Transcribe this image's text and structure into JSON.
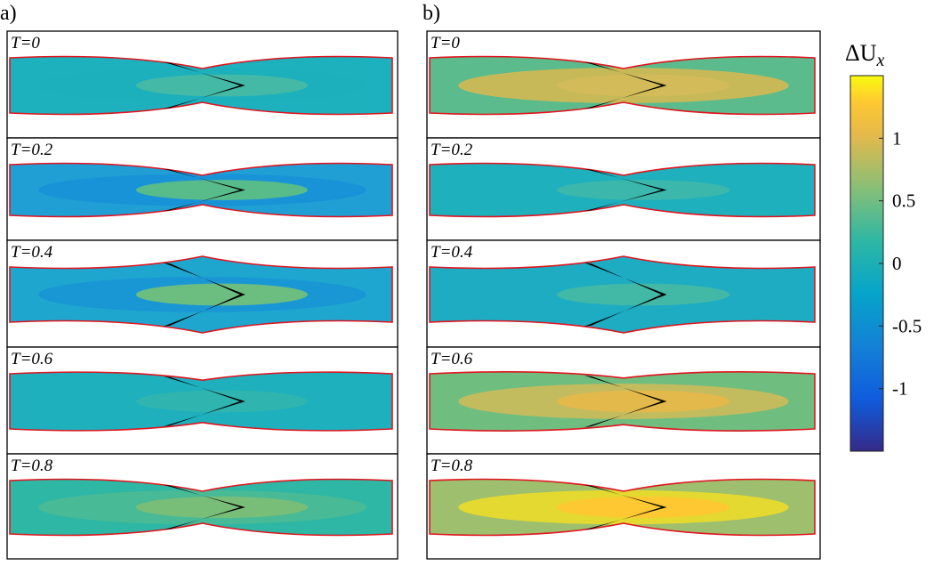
{
  "panels": [
    {
      "label": "a)",
      "frames": [
        "T=0",
        "T=0.2",
        "T=0.4",
        "T=0.6",
        "T=0.8"
      ]
    },
    {
      "label": "b)",
      "frames": [
        "T=0",
        "T=0.2",
        "T=0.4",
        "T=0.6",
        "T=0.8"
      ]
    }
  ],
  "colorbar": {
    "title": "ΔU",
    "title_sub": "x",
    "lim": [
      -1.5,
      1.5
    ],
    "ticks": [
      1,
      0.5,
      0,
      -0.5,
      -1
    ]
  }
}
